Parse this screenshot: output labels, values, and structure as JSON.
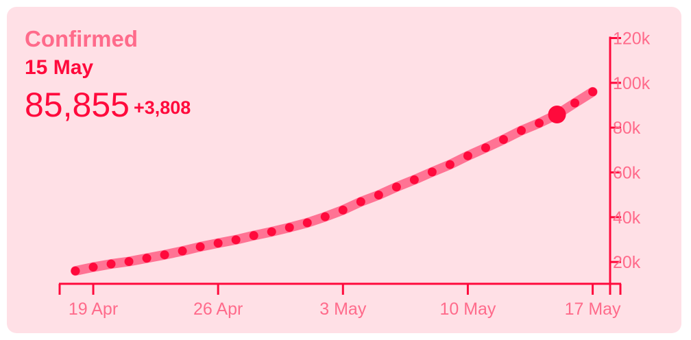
{
  "header": {
    "title": "Confirmed",
    "date": "15 May",
    "total": "85,855",
    "delta": "+3,808"
  },
  "colors": {
    "background": "#ffe0e6",
    "line": "#ff7394",
    "dots": "#ff0a3c",
    "axis": "#ff0a3c",
    "tick_label": "#ff6b8b"
  },
  "chart_data": {
    "type": "line",
    "x_start": "18 Apr",
    "x": [
      "18 Apr",
      "19 Apr",
      "20 Apr",
      "21 Apr",
      "22 Apr",
      "23 Apr",
      "24 Apr",
      "25 Apr",
      "26 Apr",
      "27 Apr",
      "28 Apr",
      "29 Apr",
      "30 Apr",
      "1 May",
      "2 May",
      "3 May",
      "4 May",
      "5 May",
      "6 May",
      "7 May",
      "8 May",
      "9 May",
      "10 May",
      "11 May",
      "12 May",
      "13 May",
      "14 May",
      "15 May",
      "16 May",
      "17 May"
    ],
    "values": [
      16000,
      17700,
      19100,
      20200,
      21700,
      23200,
      24900,
      26800,
      28400,
      29900,
      31800,
      33500,
      35400,
      37500,
      40200,
      43200,
      46900,
      49900,
      53500,
      56700,
      60200,
      63500,
      67400,
      71000,
      74700,
      78700,
      82000,
      85855,
      91000,
      96000
    ],
    "highlight": {
      "x": "15 May",
      "value": 85855
    },
    "x_ticks": [
      "19 Apr",
      "26 Apr",
      "3 May",
      "10 May",
      "17 May"
    ],
    "y_ticks": [
      20000,
      40000,
      60000,
      80000,
      100000,
      120000
    ],
    "y_tick_labels": [
      "20k",
      "40k",
      "60k",
      "80k",
      "100k",
      "120k"
    ],
    "ylim": [
      10000,
      120000
    ],
    "y_axis_position": "right",
    "grid": false,
    "legend": "none"
  }
}
